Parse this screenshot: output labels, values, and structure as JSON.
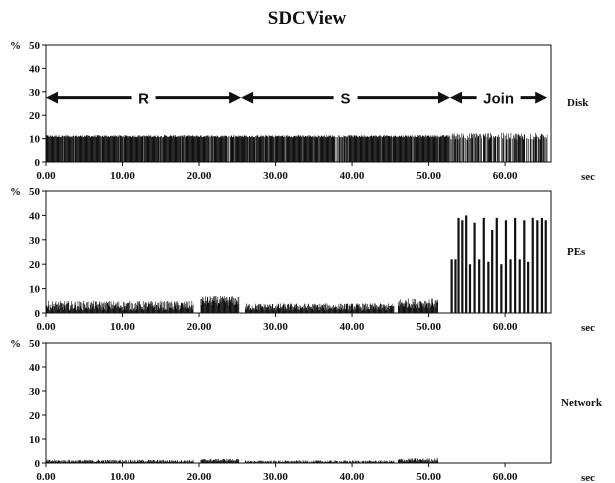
{
  "title": "SDCView",
  "chart_data": [
    {
      "type": "bar",
      "name": "Disk",
      "y_unit": "%",
      "x_unit": "sec",
      "xlim": [
        0,
        66
      ],
      "ylim": [
        0,
        50
      ],
      "x_ticks": [
        "0.00",
        "10.00",
        "20.00",
        "30.00",
        "40.00",
        "50.00",
        "60.00"
      ],
      "y_ticks": [
        "0",
        "10",
        "20",
        "30",
        "40",
        "50"
      ],
      "phases": [
        {
          "label": "R",
          "start": 0,
          "end": 25.5
        },
        {
          "label": "S",
          "start": 25.5,
          "end": 52.8
        },
        {
          "label": "Join",
          "start": 52.8,
          "end": 65.5
        }
      ],
      "segments": [
        {
          "start": 0,
          "end": 25.5,
          "level": 11,
          "var": 0.5,
          "gap": 0.04
        },
        {
          "start": 25.5,
          "end": 52.8,
          "level": 11,
          "var": 0.5,
          "gap": 0.06
        },
        {
          "start": 52.8,
          "end": 65.5,
          "level": 11,
          "var": 1.5,
          "gap": 0.35
        }
      ]
    },
    {
      "type": "bar",
      "name": "PEs",
      "y_unit": "%",
      "x_unit": "sec",
      "xlim": [
        0,
        66
      ],
      "ylim": [
        0,
        50
      ],
      "x_ticks": [
        "0.00",
        "10.00",
        "20.00",
        "30.00",
        "40.00",
        "50.00",
        "60.00"
      ],
      "y_ticks": [
        "0",
        "10",
        "20",
        "30",
        "40",
        "50"
      ],
      "segments": [
        {
          "start": 0,
          "end": 19.2,
          "level": 3,
          "var": 2,
          "gap": 0
        },
        {
          "start": 20.2,
          "end": 25.2,
          "level": 5,
          "var": 2,
          "gap": 0
        },
        {
          "start": 26.0,
          "end": 45.5,
          "level": 2.5,
          "var": 1.5,
          "gap": 0
        },
        {
          "start": 46.0,
          "end": 51.2,
          "level": 4,
          "var": 2,
          "gap": 0
        }
      ],
      "spikes": [
        {
          "x": 53.0,
          "y": 22
        },
        {
          "x": 53.5,
          "y": 22
        },
        {
          "x": 53.9,
          "y": 39
        },
        {
          "x": 54.4,
          "y": 38
        },
        {
          "x": 54.9,
          "y": 40
        },
        {
          "x": 55.4,
          "y": 20
        },
        {
          "x": 56.0,
          "y": 37
        },
        {
          "x": 56.6,
          "y": 22
        },
        {
          "x": 57.2,
          "y": 39
        },
        {
          "x": 57.8,
          "y": 21
        },
        {
          "x": 58.3,
          "y": 34
        },
        {
          "x": 58.9,
          "y": 39
        },
        {
          "x": 59.5,
          "y": 20
        },
        {
          "x": 60.1,
          "y": 38
        },
        {
          "x": 60.7,
          "y": 22
        },
        {
          "x": 61.3,
          "y": 39
        },
        {
          "x": 61.9,
          "y": 22
        },
        {
          "x": 62.5,
          "y": 38
        },
        {
          "x": 63.0,
          "y": 21
        },
        {
          "x": 63.6,
          "y": 39
        },
        {
          "x": 64.2,
          "y": 38
        },
        {
          "x": 64.8,
          "y": 39
        },
        {
          "x": 65.3,
          "y": 38
        }
      ]
    },
    {
      "type": "bar",
      "name": "Network",
      "y_unit": "%",
      "x_unit": "sec",
      "xlim": [
        0,
        66
      ],
      "ylim": [
        0,
        50
      ],
      "x_ticks": [
        "0.00",
        "10.00",
        "20.00",
        "30.00",
        "40.00",
        "50.00",
        "60.00"
      ],
      "y_ticks": [
        "0",
        "10",
        "20",
        "30",
        "40",
        "50"
      ],
      "segments": [
        {
          "start": 0,
          "end": 19.2,
          "level": 0.8,
          "var": 0.6,
          "gap": 0
        },
        {
          "start": 20.2,
          "end": 25.2,
          "level": 1.2,
          "var": 0.6,
          "gap": 0
        },
        {
          "start": 26.0,
          "end": 45.5,
          "level": 0.6,
          "var": 0.5,
          "gap": 0
        },
        {
          "start": 46.0,
          "end": 51.2,
          "level": 1.2,
          "var": 0.8,
          "gap": 0
        }
      ],
      "spikes": []
    }
  ]
}
